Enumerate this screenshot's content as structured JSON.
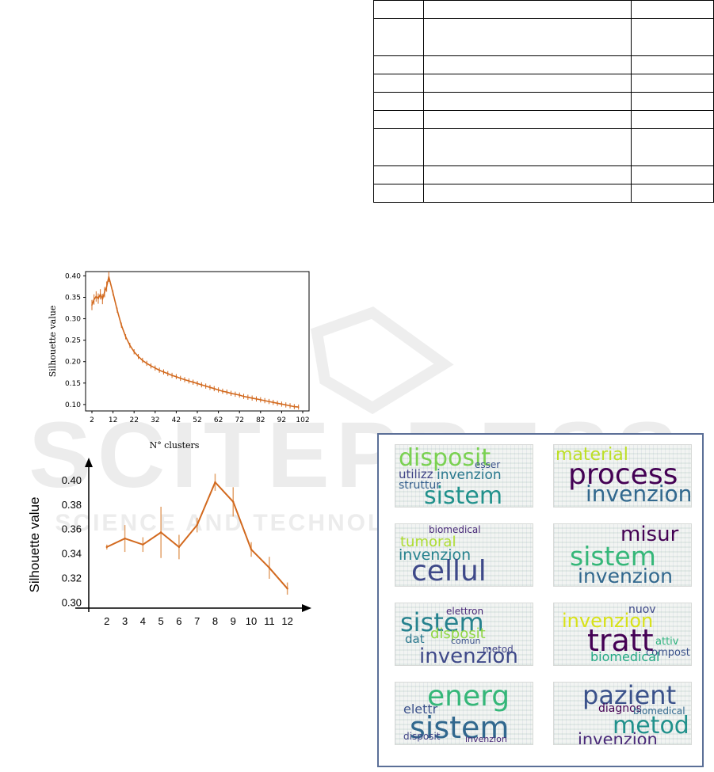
{
  "table": {
    "rows": 10,
    "cols": 3
  },
  "watermark": {
    "text": "SCITEPRESS",
    "subtext": "SCIENCE AND TECHNOLOGY PUBLICATIONS"
  },
  "colors": {
    "line": "#d2691e",
    "line_light": "#e3a26a",
    "panel_border": "#5b6f97"
  },
  "chart_data": [
    {
      "type": "line",
      "xlabel": "N°  clusters",
      "ylabel": "Silhouette value",
      "xticks": [
        "2",
        "12",
        "22",
        "32",
        "42",
        "52",
        "62",
        "72",
        "82",
        "92",
        "102"
      ],
      "yticks": [
        "0.10",
        "0.15",
        "0.20",
        "0.25",
        "0.30",
        "0.35",
        "0.40"
      ],
      "xlim": [
        2,
        102
      ],
      "ylim": [
        0.085,
        0.41
      ],
      "series": [
        {
          "x": [
            2,
            3,
            4,
            5,
            6,
            7,
            8,
            9,
            10,
            12,
            14,
            16,
            18,
            20,
            22,
            24,
            26,
            28,
            30,
            32,
            34,
            36,
            38,
            40,
            42,
            44,
            46,
            48,
            50,
            52,
            54,
            56,
            58,
            60,
            62,
            64,
            66,
            68,
            70,
            72,
            74,
            76,
            78,
            80,
            82,
            84,
            86,
            88,
            90,
            92,
            94,
            96,
            98,
            100
          ],
          "values": [
            0.332,
            0.345,
            0.352,
            0.347,
            0.357,
            0.346,
            0.362,
            0.375,
            0.398,
            0.36,
            0.32,
            0.285,
            0.258,
            0.238,
            0.223,
            0.212,
            0.203,
            0.196,
            0.19,
            0.185,
            0.18,
            0.176,
            0.172,
            0.168,
            0.165,
            0.161,
            0.158,
            0.155,
            0.152,
            0.149,
            0.146,
            0.143,
            0.14,
            0.137,
            0.134,
            0.131,
            0.129,
            0.126,
            0.124,
            0.122,
            0.119,
            0.117,
            0.115,
            0.113,
            0.111,
            0.109,
            0.107,
            0.105,
            0.103,
            0.101,
            0.099,
            0.097,
            0.095,
            0.094
          ],
          "err": 0.006
        }
      ]
    },
    {
      "type": "line",
      "xlabel": "",
      "ylabel": "Silhouette value",
      "xticks": [
        "2",
        "3",
        "4",
        "5",
        "6",
        "7",
        "8",
        "9",
        "10",
        "11",
        "12"
      ],
      "yticks": [
        "0.30",
        "0.32",
        "0.34",
        "0.36",
        "0.38",
        "0.40"
      ],
      "xlim": [
        1,
        12.5
      ],
      "ylim": [
        0.295,
        0.413
      ],
      "series": [
        {
          "x": [
            2,
            3,
            4,
            5,
            6,
            7,
            8,
            9,
            10,
            11,
            12
          ],
          "values": [
            0.345,
            0.352,
            0.347,
            0.357,
            0.345,
            0.363,
            0.398,
            0.382,
            0.343,
            0.328,
            0.311
          ],
          "err": [
            0.002,
            0.011,
            0.006,
            0.021,
            0.01,
            0.006,
            0.007,
            0.012,
            0.006,
            0.009,
            0.005
          ]
        }
      ]
    }
  ],
  "word_clouds": [
    {
      "big": [
        {
          "t": "disposit",
          "c": "#7ad151"
        },
        {
          "t": "esser",
          "c": "#3b528b"
        },
        {
          "t": "utilizz",
          "c": "#414487"
        },
        {
          "t": "invenzion",
          "c": "#2a788e"
        },
        {
          "t": "struttur",
          "c": "#355f8d"
        },
        {
          "t": "sistem",
          "c": "#21918c"
        }
      ]
    },
    {
      "big": [
        {
          "t": "material",
          "c": "#bddf26"
        },
        {
          "t": "process",
          "c": "#440154"
        },
        {
          "t": "invenzion",
          "c": "#31688e"
        }
      ]
    },
    {
      "big": [
        {
          "t": "biomedical",
          "c": "#482878"
        },
        {
          "t": "tumoral",
          "c": "#addc30"
        },
        {
          "t": "invenzion",
          "c": "#26828e"
        },
        {
          "t": "cellul",
          "c": "#3e4989"
        }
      ]
    },
    {
      "big": [
        {
          "t": "misur",
          "c": "#440154"
        },
        {
          "t": "sistem",
          "c": "#35b779"
        },
        {
          "t": "invenzion",
          "c": "#31688e"
        }
      ]
    },
    {
      "big": [
        {
          "t": "elettron",
          "c": "#482878"
        },
        {
          "t": "sistem",
          "c": "#26828e"
        },
        {
          "t": "disposit",
          "c": "#90d743"
        },
        {
          "t": "dat",
          "c": "#2a788e"
        },
        {
          "t": "comun",
          "c": "#3b528b"
        },
        {
          "t": "metod",
          "c": "#414487"
        },
        {
          "t": "invenzion",
          "c": "#3e4989"
        }
      ]
    },
    {
      "big": [
        {
          "t": "nuov",
          "c": "#3e4989"
        },
        {
          "t": "invenzion",
          "c": "#d8e219"
        },
        {
          "t": "tratt",
          "c": "#440154"
        },
        {
          "t": "attiv",
          "c": "#2db27d"
        },
        {
          "t": "compost",
          "c": "#3b528b"
        },
        {
          "t": "biomedical",
          "c": "#22a884"
        }
      ]
    },
    {
      "big": [
        {
          "t": "energ",
          "c": "#35b779"
        },
        {
          "t": "elettr",
          "c": "#3b528b"
        },
        {
          "t": "sistem",
          "c": "#31688e"
        },
        {
          "t": "disposit",
          "c": "#414487"
        },
        {
          "t": "invenzion",
          "c": "#482878"
        }
      ]
    },
    {
      "big": [
        {
          "t": "pazient",
          "c": "#3b528b"
        },
        {
          "t": "diagnos",
          "c": "#440154"
        },
        {
          "t": "biomedical",
          "c": "#31688e"
        },
        {
          "t": "metod",
          "c": "#21918c"
        },
        {
          "t": "invenzion",
          "c": "#482878"
        }
      ]
    }
  ]
}
